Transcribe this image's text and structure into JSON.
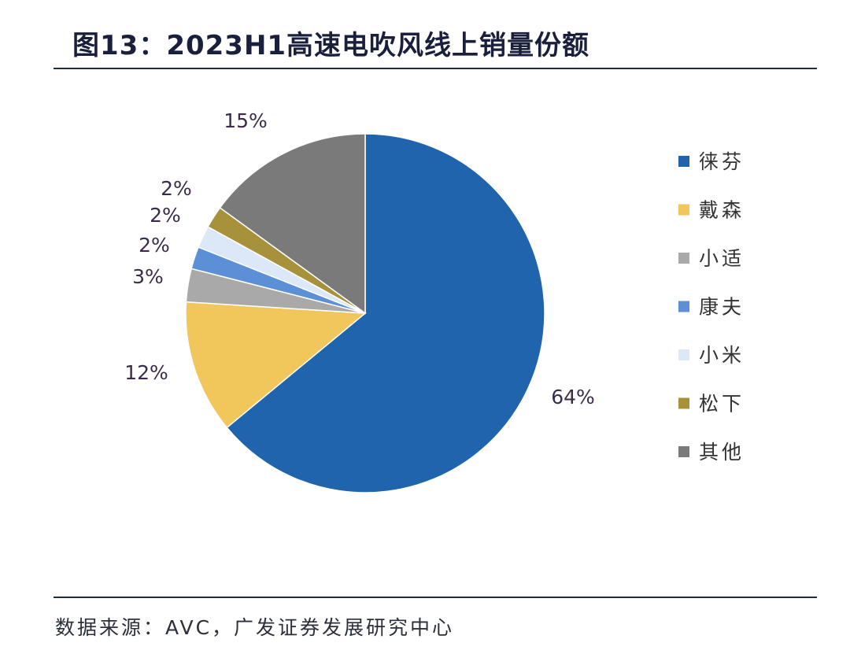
{
  "title": "图13：2023H1高速电吹风线上销量份额",
  "source": "数据来源：AVC，广发证券发展研究中心",
  "chart_data": {
    "type": "pie",
    "categories": [
      "徕芬",
      "戴森",
      "小适",
      "康夫",
      "小米",
      "松下",
      "其他"
    ],
    "values": [
      64,
      12,
      3,
      2,
      2,
      2,
      15
    ],
    "value_labels": [
      "64%",
      "12%",
      "3%",
      "2%",
      "2%",
      "2%",
      "15%"
    ],
    "colors": [
      "#1f64ad",
      "#f1c65a",
      "#a9a9a9",
      "#5b8fd6",
      "#dce8f7",
      "#a8913b",
      "#7a7a7a"
    ],
    "start": "12 o'clock",
    "direction": "clockwise",
    "legend_position": "right"
  }
}
